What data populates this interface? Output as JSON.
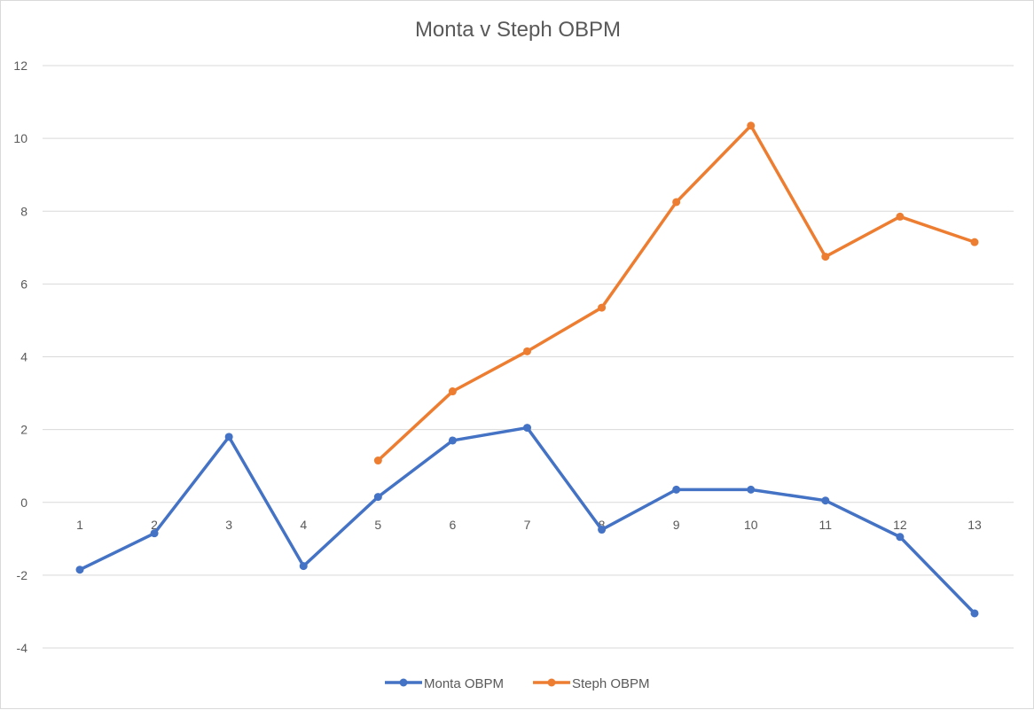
{
  "chart_data": {
    "type": "line",
    "title": "Monta v Steph OBPM",
    "xlabel": "",
    "ylabel": "",
    "categories": [
      "1",
      "2",
      "3",
      "4",
      "5",
      "6",
      "7",
      "8",
      "9",
      "10",
      "11",
      "12",
      "13"
    ],
    "ylim": [
      -4,
      12
    ],
    "yticks": [
      -4,
      -2,
      0,
      2,
      4,
      6,
      8,
      10,
      12
    ],
    "grid": true,
    "legend": "bottom",
    "series": [
      {
        "name": "Monta OBPM",
        "color": "#4472C4",
        "values": [
          -1.85,
          -0.85,
          1.8,
          -1.75,
          0.15,
          1.7,
          2.05,
          -0.75,
          0.35,
          0.35,
          0.05,
          -0.95,
          -3.05
        ]
      },
      {
        "name": "Steph OBPM",
        "color": "#ED7D31",
        "values": [
          null,
          null,
          null,
          null,
          1.15,
          3.05,
          4.15,
          5.35,
          8.25,
          10.35,
          6.75,
          7.85,
          7.15
        ]
      }
    ]
  }
}
